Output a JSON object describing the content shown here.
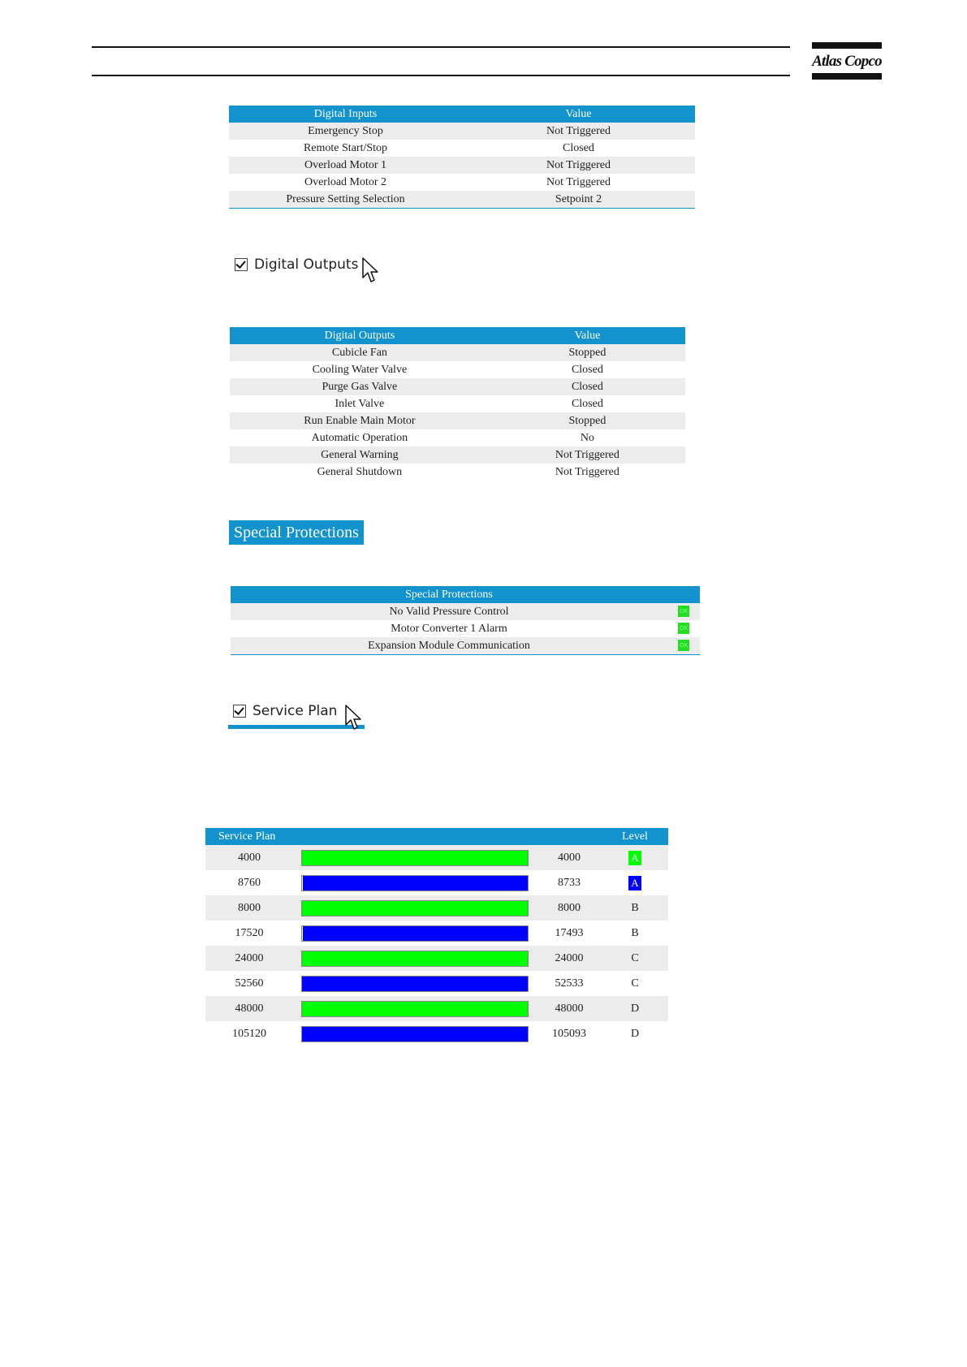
{
  "header": {
    "brand": "Atlas Copco"
  },
  "digital_inputs": {
    "columns": [
      "Digital Inputs",
      "Value"
    ],
    "rows": [
      [
        "Emergency Stop",
        "Not Triggered"
      ],
      [
        "Remote Start/Stop",
        "Closed"
      ],
      [
        "Overload Motor 1",
        "Not Triggered"
      ],
      [
        "Overload Motor 2",
        "Not Triggered"
      ],
      [
        "Pressure Setting Selection",
        "Setpoint 2"
      ]
    ]
  },
  "digital_outputs_toggle": {
    "label": "Digital Outputs",
    "checked": true
  },
  "digital_outputs": {
    "columns": [
      "Digital Outputs",
      "Value"
    ],
    "rows": [
      [
        "Cubicle Fan",
        "Stopped"
      ],
      [
        "Cooling Water Valve",
        "Closed"
      ],
      [
        "Purge Gas Valve",
        "Closed"
      ],
      [
        "Inlet Valve",
        "Closed"
      ],
      [
        "Run Enable Main Motor",
        "Stopped"
      ],
      [
        "Automatic Operation",
        "No"
      ],
      [
        "General Warning",
        "Not Triggered"
      ],
      [
        "General Shutdown",
        "Not Triggered"
      ]
    ]
  },
  "special_protections_section": {
    "title": "Special Protections"
  },
  "special_protections": {
    "header": "Special Protections",
    "status_icon": "ok-icon",
    "status_text": "OK",
    "status_color": "#22dd22",
    "rows": [
      "No Valid Pressure Control",
      "Motor Converter 1 Alarm",
      "Expansion Module Communication"
    ]
  },
  "service_plan_toggle": {
    "label": "Service Plan",
    "checked": true
  },
  "service_plan": {
    "columns": [
      "Service Plan",
      "Level"
    ],
    "colors": {
      "green": "#00ff00",
      "blue": "#0000ff"
    },
    "rows": [
      {
        "interval": "4000",
        "remaining": "4000",
        "level": "A",
        "color": "green",
        "fill": 1.0,
        "level_highlight": true
      },
      {
        "interval": "8760",
        "remaining": "8733",
        "level": "A",
        "color": "blue",
        "fill": 0.997,
        "level_highlight": true
      },
      {
        "interval": "8000",
        "remaining": "8000",
        "level": "B",
        "color": "green",
        "fill": 1.0,
        "level_highlight": false
      },
      {
        "interval": "17520",
        "remaining": "17493",
        "level": "B",
        "color": "blue",
        "fill": 0.998,
        "level_highlight": false
      },
      {
        "interval": "24000",
        "remaining": "24000",
        "level": "C",
        "color": "green",
        "fill": 1.0,
        "level_highlight": false
      },
      {
        "interval": "52560",
        "remaining": "52533",
        "level": "C",
        "color": "blue",
        "fill": 0.999,
        "level_highlight": false
      },
      {
        "interval": "48000",
        "remaining": "48000",
        "level": "D",
        "color": "green",
        "fill": 1.0,
        "level_highlight": false
      },
      {
        "interval": "105120",
        "remaining": "105093",
        "level": "D",
        "color": "blue",
        "fill": 0.999,
        "level_highlight": false
      }
    ]
  }
}
